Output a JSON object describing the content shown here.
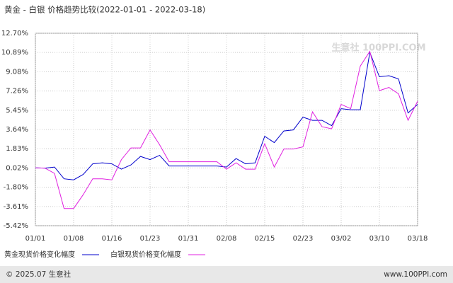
{
  "chart_data": {
    "type": "line",
    "title": "黄金 - 白银 价格趋势比较(2022-01-01 - 2022-03-18)",
    "categories": [
      "01/01",
      null,
      null,
      null,
      "01/08",
      null,
      null,
      null,
      "01/16",
      null,
      null,
      null,
      "01/23",
      null,
      null,
      null,
      "01/31",
      null,
      null,
      null,
      "02/08",
      null,
      null,
      null,
      "02/15",
      null,
      null,
      null,
      "02/23",
      null,
      null,
      null,
      "03/02",
      null,
      null,
      null,
      "03/10",
      null,
      null,
      null,
      "03/18"
    ],
    "series": [
      {
        "name": "黄金现货价格变化幅度",
        "color": "#0000cc",
        "values": [
          0.02,
          0.0,
          0.1,
          -1.0,
          -1.1,
          -0.6,
          0.4,
          0.5,
          0.4,
          -0.1,
          0.3,
          1.1,
          0.8,
          1.2,
          0.2,
          0.2,
          0.2,
          0.2,
          0.2,
          0.2,
          0.1,
          0.9,
          0.4,
          0.5,
          3.0,
          2.4,
          3.5,
          3.6,
          4.8,
          4.5,
          4.5,
          4.0,
          5.6,
          5.5,
          5.5,
          10.9,
          8.6,
          8.7,
          8.4,
          5.2,
          6.0
        ]
      },
      {
        "name": "白银现货价格变化幅度",
        "color": "#e020e0",
        "values": [
          0.02,
          0.0,
          -0.5,
          -3.8,
          -3.8,
          -2.5,
          -1.0,
          -1.0,
          -1.1,
          0.8,
          1.9,
          1.9,
          3.6,
          2.2,
          0.6,
          0.6,
          0.6,
          0.6,
          0.6,
          0.6,
          -0.1,
          0.5,
          -0.1,
          -0.1,
          2.3,
          0.1,
          1.8,
          1.8,
          2.0,
          5.3,
          3.9,
          3.7,
          6.0,
          5.6,
          9.6,
          11.0,
          7.3,
          7.6,
          7.0,
          4.5,
          6.3
        ]
      }
    ],
    "ylim": [
      -5.42,
      12.7
    ],
    "yticks": [
      {
        "value": -5.42,
        "label": "-5.42%"
      },
      {
        "value": -3.61,
        "label": "-3.61%"
      },
      {
        "value": -1.8,
        "label": "-1.80%"
      },
      {
        "value": 0.02,
        "label": "0.02%"
      },
      {
        "value": 1.83,
        "label": "1.83%"
      },
      {
        "value": 3.64,
        "label": "3.64%"
      },
      {
        "value": 5.45,
        "label": "5.45%"
      },
      {
        "value": 7.26,
        "label": "7.26%"
      },
      {
        "value": 9.08,
        "label": "9.08%"
      },
      {
        "value": 10.89,
        "label": "10.89%"
      },
      {
        "value": 12.7,
        "label": "12.70%"
      }
    ],
    "grid": true,
    "watermark": "生意社 100PPI.COM",
    "footer_left": "© 2025.07 生意社",
    "footer_right": "www.100PPI.com"
  }
}
